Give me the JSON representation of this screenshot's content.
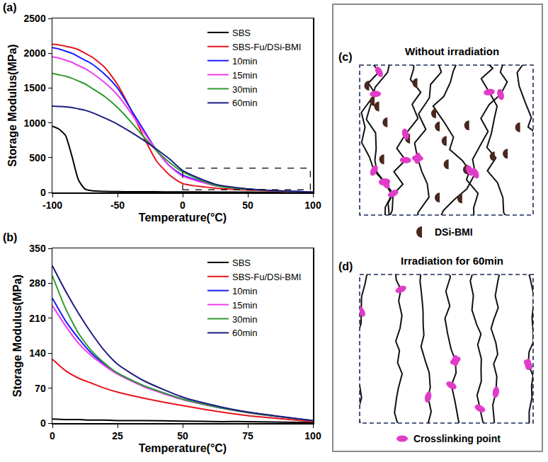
{
  "chart_data": [
    {
      "panel": "(a)",
      "type": "line",
      "x_label": "Temperature(°C)",
      "y_label": "Storage Modulus(MPa)",
      "x": [
        -100,
        -95,
        -90,
        -85,
        -80,
        -75,
        -70,
        -60,
        -50,
        -40,
        -30,
        -20,
        -10,
        0,
        25,
        50,
        75,
        100
      ],
      "xlim": [
        -100,
        100
      ],
      "xticks": [
        -100,
        -50,
        0,
        50,
        100
      ],
      "ylim": [
        0,
        2500
      ],
      "yticks": [
        0,
        500,
        1000,
        1500,
        2000,
        2500
      ],
      "grid": false,
      "legend": "upper right",
      "highlight": {
        "x": [
          0,
          98
        ],
        "y": [
          40,
          350
        ]
      },
      "series": [
        {
          "name": "SBS",
          "color": "#000000",
          "values": [
            950,
            910,
            820,
            520,
            180,
            50,
            25,
            15,
            12,
            10,
            9,
            9,
            8,
            8,
            5,
            4,
            3,
            1
          ]
        },
        {
          "name": "SBS-Fu/DSi-BMI",
          "color": "#e8141c",
          "values": [
            2130,
            2120,
            2100,
            2080,
            2050,
            2000,
            1950,
            1800,
            1550,
            1200,
            800,
            450,
            250,
            128,
            62,
            35,
            15,
            3
          ]
        },
        {
          "name": "10min",
          "color": "#1a1aff",
          "values": [
            2080,
            2060,
            2030,
            2000,
            1950,
            1900,
            1850,
            1700,
            1500,
            1200,
            900,
            600,
            380,
            250,
            100,
            48,
            22,
            5
          ]
        },
        {
          "name": "15min",
          "color": "#f03cf0",
          "values": [
            1950,
            1930,
            1900,
            1870,
            1820,
            1780,
            1720,
            1580,
            1400,
            1150,
            870,
            600,
            380,
            235,
            98,
            47,
            21,
            5
          ]
        },
        {
          "name": "30min",
          "color": "#2e9a2e",
          "values": [
            1710,
            1690,
            1670,
            1640,
            1600,
            1560,
            1500,
            1380,
            1220,
            1020,
            800,
            600,
            430,
            295,
            100,
            48,
            21,
            5
          ]
        },
        {
          "name": "60min",
          "color": "#1c1c80",
          "values": [
            1240,
            1235,
            1230,
            1220,
            1200,
            1180,
            1150,
            1070,
            980,
            870,
            750,
            620,
            480,
            315,
            118,
            52,
            22,
            5
          ]
        }
      ]
    },
    {
      "panel": "(b)",
      "type": "line",
      "x_label": "Temperature(°C)",
      "y_label": "Storage Modulus(MPa)",
      "x": [
        0,
        5,
        10,
        15,
        20,
        25,
        35,
        50,
        65,
        75,
        85,
        100
      ],
      "xlim": [
        0,
        100
      ],
      "xticks": [
        0,
        25,
        50,
        75,
        100
      ],
      "ylim": [
        0,
        350
      ],
      "yticks": [
        0,
        70,
        140,
        210,
        280,
        350
      ],
      "grid": false,
      "legend": "upper right",
      "series": [
        {
          "name": "SBS",
          "color": "#000000",
          "values": [
            8,
            7,
            7,
            6,
            6,
            5,
            5,
            4,
            3,
            3,
            2,
            1
          ]
        },
        {
          "name": "SBS-Fu/DSi-BMI",
          "color": "#e8141c",
          "values": [
            128,
            105,
            90,
            80,
            70,
            62,
            50,
            35,
            22,
            15,
            10,
            3
          ]
        },
        {
          "name": "10min",
          "color": "#1a1aff",
          "values": [
            250,
            205,
            170,
            140,
            118,
            100,
            75,
            48,
            30,
            22,
            14,
            5
          ]
        },
        {
          "name": "15min",
          "color": "#f03cf0",
          "values": [
            235,
            195,
            160,
            135,
            115,
            98,
            73,
            47,
            30,
            21,
            14,
            5
          ]
        },
        {
          "name": "30min",
          "color": "#2e9a2e",
          "values": [
            295,
            230,
            180,
            145,
            120,
            100,
            75,
            48,
            30,
            21,
            14,
            5
          ]
        },
        {
          "name": "60min",
          "color": "#1c1c80",
          "values": [
            315,
            265,
            220,
            180,
            145,
            118,
            85,
            52,
            32,
            22,
            15,
            5
          ]
        }
      ]
    }
  ],
  "diagrams": [
    {
      "panel": "(c)",
      "title": "Without irradiation",
      "legend_label": "DSi-BMI"
    },
    {
      "panel": "(d)",
      "title": "Irradiation for 60min",
      "legend_label": "Crosslinking point"
    }
  ]
}
